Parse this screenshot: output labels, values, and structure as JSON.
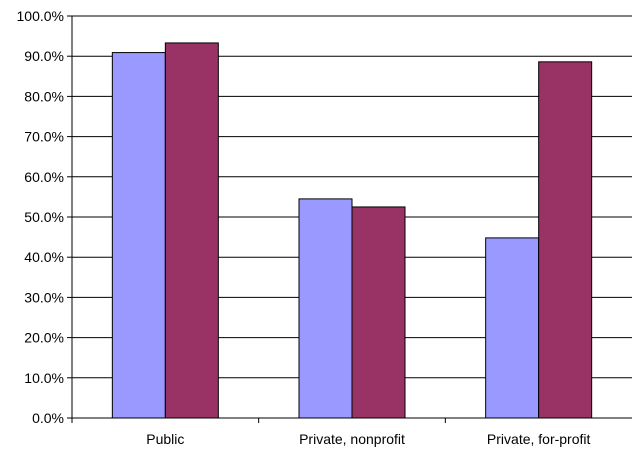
{
  "chart_data": {
    "type": "bar",
    "title": "",
    "xlabel": "",
    "ylabel": "",
    "categories": [
      "Public",
      "Private, nonprofit",
      "Private, for-profit"
    ],
    "series": [
      {
        "color": "#9999ff",
        "values": [
          90.9,
          54.5,
          44.8
        ]
      },
      {
        "color": "#993366",
        "values": [
          93.3,
          52.5,
          88.6
        ]
      }
    ],
    "ylim": [
      0,
      100
    ],
    "y_ticks": [
      0,
      10,
      20,
      30,
      40,
      50,
      60,
      70,
      80,
      90,
      100
    ],
    "y_tick_labels": [
      "0.0%",
      "10.0%",
      "20.0%",
      "30.0%",
      "40.0%",
      "50.0%",
      "60.0%",
      "70.0%",
      "80.0%",
      "90.0%",
      "100.0%"
    ],
    "grid": true,
    "legend": "none"
  }
}
